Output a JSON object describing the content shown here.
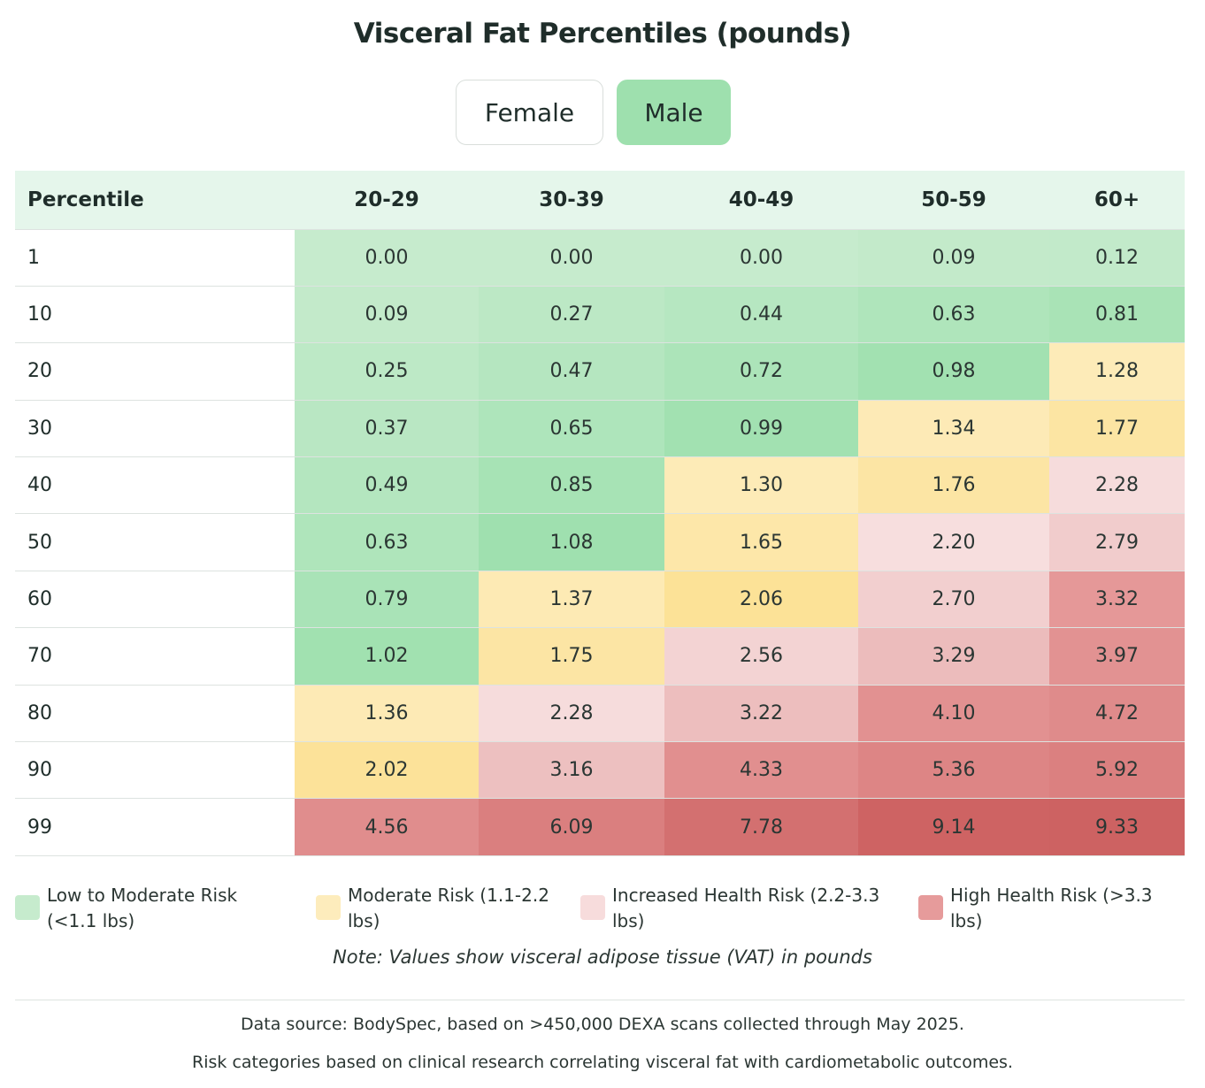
{
  "title": "Visceral Fat Percentiles (pounds)",
  "toggles": {
    "female": "Female",
    "male": "Male",
    "selected": "Male"
  },
  "colors": {
    "low": "#c6ebcd",
    "moderate": "#fdecbc",
    "increased": "#f7dcdc",
    "high": "#e69b9b",
    "selected_toggle": "#9ee0ae",
    "header_bg": "#e5f6eb"
  },
  "chart_data": {
    "type": "table",
    "title": "Visceral Fat Percentiles (pounds)",
    "row_header": "Percentile",
    "columns": [
      "20-29",
      "30-39",
      "40-49",
      "50-59",
      "60+"
    ],
    "rows": [
      {
        "percentile": "1",
        "values": [
          "0.00",
          "0.00",
          "0.00",
          "0.09",
          "0.12"
        ]
      },
      {
        "percentile": "10",
        "values": [
          "0.09",
          "0.27",
          "0.44",
          "0.63",
          "0.81"
        ]
      },
      {
        "percentile": "20",
        "values": [
          "0.25",
          "0.47",
          "0.72",
          "0.98",
          "1.28"
        ]
      },
      {
        "percentile": "30",
        "values": [
          "0.37",
          "0.65",
          "0.99",
          "1.34",
          "1.77"
        ]
      },
      {
        "percentile": "40",
        "values": [
          "0.49",
          "0.85",
          "1.30",
          "1.76",
          "2.28"
        ]
      },
      {
        "percentile": "50",
        "values": [
          "0.63",
          "1.08",
          "1.65",
          "2.20",
          "2.79"
        ]
      },
      {
        "percentile": "60",
        "values": [
          "0.79",
          "1.37",
          "2.06",
          "2.70",
          "3.32"
        ]
      },
      {
        "percentile": "70",
        "values": [
          "1.02",
          "1.75",
          "2.56",
          "3.29",
          "3.97"
        ]
      },
      {
        "percentile": "80",
        "values": [
          "1.36",
          "2.28",
          "3.22",
          "4.10",
          "4.72"
        ]
      },
      {
        "percentile": "90",
        "values": [
          "2.02",
          "3.16",
          "4.33",
          "5.36",
          "5.92"
        ]
      },
      {
        "percentile": "99",
        "values": [
          "4.56",
          "6.09",
          "7.78",
          "9.14",
          "9.33"
        ]
      }
    ]
  },
  "legend": [
    {
      "label": "Low to Moderate Risk (<1.1 lbs)",
      "color": "#c6ebcd"
    },
    {
      "label": "Moderate Risk (1.1-2.2 lbs)",
      "color": "#fdecbc"
    },
    {
      "label": "Increased Health Risk (2.2-3.3 lbs)",
      "color": "#f7dcdc"
    },
    {
      "label": "High Health Risk (>3.3 lbs)",
      "color": "#e69b9b"
    }
  ],
  "note": {
    "prefix": "Note",
    "text": ": Values show visceral adipose tissue (VAT) in pounds"
  },
  "footer": {
    "source": "Data source: BodySpec, based on >450,000 DEXA scans collected through May 2025.",
    "risk": "Risk categories based on clinical research correlating visceral fat with cardiometabolic outcomes."
  }
}
